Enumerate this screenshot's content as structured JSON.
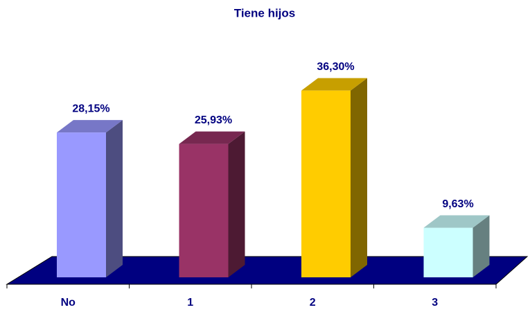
{
  "chart_data": {
    "type": "bar3d",
    "title": "Tiene hijos",
    "categories": [
      "No",
      "1",
      "2",
      "3"
    ],
    "values": [
      28.15,
      25.93,
      36.3,
      9.63
    ],
    "value_labels": [
      "28,15%",
      "25,93%",
      "36,30%",
      "9,63%"
    ],
    "colors": [
      "#9999ff",
      "#993366",
      "#ffcc00",
      "#ccffff"
    ],
    "floor_color": "#000080"
  }
}
